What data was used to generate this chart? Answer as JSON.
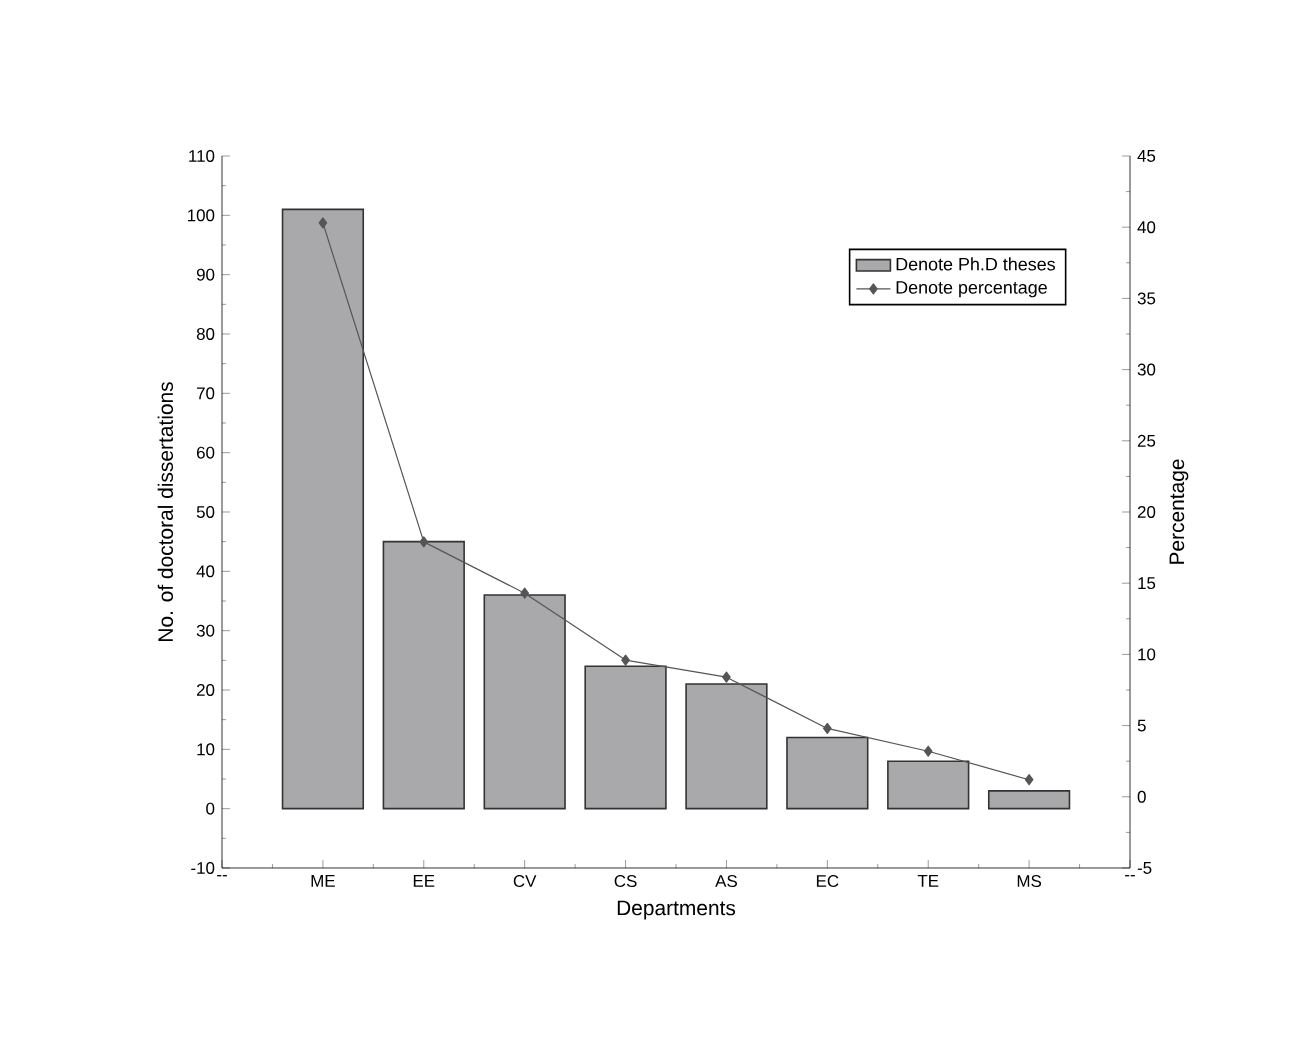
{
  "chart_data": {
    "type": "bar",
    "xlabel": "Departments",
    "ylabel": "No. of doctoral dissertations",
    "y2label": "Percentage",
    "categories": [
      "--",
      "ME",
      "EE",
      "CV",
      "CS",
      "AS",
      "EC",
      "TE",
      "MS",
      "--"
    ],
    "series": [
      {
        "name": "Denote Ph.D theses",
        "color": "#a9a9ab",
        "values": [
          null,
          101,
          45,
          36,
          24,
          21,
          12,
          8,
          3,
          null
        ]
      },
      {
        "name": "Denote percentage",
        "type": "line",
        "axis": "y2",
        "color": "#555555",
        "marker": "diamond",
        "values": [
          null,
          40.3,
          17.9,
          14.3,
          9.6,
          8.4,
          4.8,
          3.2,
          1.2,
          null
        ]
      }
    ],
    "ylim": [
      -10,
      110
    ],
    "yticks": [
      -10,
      0,
      10,
      20,
      30,
      40,
      50,
      60,
      70,
      80,
      90,
      100,
      110
    ],
    "y2lim": [
      -5,
      45
    ],
    "y2ticks": [
      -5,
      0,
      5,
      10,
      15,
      20,
      25,
      30,
      35,
      40,
      45
    ],
    "legend": "top right",
    "grid": false
  }
}
